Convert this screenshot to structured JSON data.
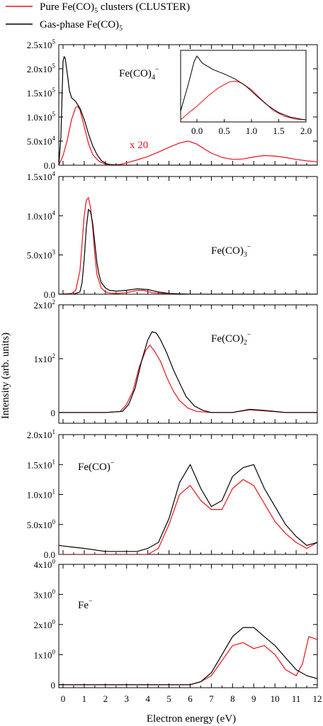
{
  "legend": {
    "red_label": "Pure Fe(CO)",
    "red_sub": "5",
    "red_tail": " clusters (CLUSTER)",
    "black_label": "Gas-phase Fe(CO)",
    "black_sub": "5"
  },
  "colors": {
    "red": "#e8121a",
    "black": "#000000"
  },
  "ylabel": "Intensity (arb. units)",
  "xlabel": "Electron energy  (eV)",
  "chart_data": [
    {
      "type": "line",
      "species": {
        "base": "Fe(CO)",
        "sub": "4",
        "sup": "−"
      },
      "xlim": [
        -0.2,
        12
      ],
      "ylim": [
        0,
        250000
      ],
      "yticks": [
        0,
        50000,
        100000,
        150000,
        200000,
        250000
      ],
      "yticklabels": [
        "0.0",
        "5.0x10^4",
        "1.0x10^5",
        "1.5x10^5",
        "2.0x10^5",
        "2.5x10^5"
      ],
      "annotation": "x 20",
      "series": [
        {
          "color": "red",
          "x": [
            -0.2,
            0.0,
            0.2,
            0.4,
            0.6,
            0.7,
            0.8,
            1.0,
            1.2,
            1.4,
            1.7,
            2.0,
            2.3,
            2.7,
            3.0,
            3.5,
            4.0,
            4.5,
            5.0,
            5.5,
            5.9,
            6.3,
            6.7,
            7.0,
            7.5,
            8.0,
            8.5,
            9.0,
            9.5,
            10.0,
            10.5,
            11.0,
            11.5,
            12.0
          ],
          "y": [
            0,
            20000,
            52000,
            95000,
            120000,
            122000,
            115000,
            80000,
            45000,
            22000,
            8000,
            2000,
            500,
            1500,
            5000,
            11000,
            18000,
            27000,
            37000,
            46000,
            50000,
            44000,
            33000,
            25000,
            16000,
            12000,
            13000,
            17000,
            20000,
            19000,
            16000,
            12000,
            9000,
            7000
          ]
        },
        {
          "color": "black",
          "x": [
            -0.2,
            -0.1,
            0.0,
            0.05,
            0.1,
            0.2,
            0.3,
            0.4,
            0.6,
            0.8,
            1.0,
            1.2,
            1.4,
            1.6,
            1.8,
            2.0,
            2.2,
            2.5,
            3.0,
            4.0,
            12.0
          ],
          "y": [
            0,
            60000,
            215000,
            225000,
            222000,
            190000,
            155000,
            140000,
            132000,
            118000,
            95000,
            65000,
            40000,
            22000,
            10000,
            4000,
            1500,
            500,
            0,
            0,
            0
          ]
        }
      ],
      "inset": {
        "xlim": [
          -0.3,
          2.0
        ],
        "xticklabels": [
          "0.0",
          "0.5",
          "1.0",
          "1.5",
          "2.0"
        ],
        "series": [
          {
            "color": "red",
            "x": [
              -0.3,
              -0.1,
              0.0,
              0.2,
              0.4,
              0.6,
              0.7,
              0.8,
              1.0,
              1.2,
              1.4,
              1.6,
              1.8,
              2.0
            ],
            "y": [
              0.03,
              0.16,
              0.22,
              0.36,
              0.48,
              0.56,
              0.57,
              0.55,
              0.45,
              0.3,
              0.16,
              0.08,
              0.04,
              0.03
            ]
          },
          {
            "color": "black",
            "x": [
              -0.3,
              -0.15,
              -0.05,
              0.0,
              0.1,
              0.3,
              0.5,
              0.7,
              0.9,
              1.1,
              1.3,
              1.5,
              1.7,
              1.9,
              2.0
            ],
            "y": [
              0.15,
              0.55,
              0.85,
              0.92,
              0.82,
              0.73,
              0.67,
              0.6,
              0.5,
              0.36,
              0.23,
              0.13,
              0.07,
              0.04,
              0.03
            ]
          }
        ]
      }
    },
    {
      "type": "line",
      "species": {
        "base": "Fe(CO)",
        "sub": "3",
        "sup": "−"
      },
      "xlim": [
        -0.2,
        12
      ],
      "ylim": [
        0,
        15000
      ],
      "yticks": [
        0,
        5000,
        10000,
        15000
      ],
      "yticklabels": [
        "0.0",
        "5.0x10^3",
        "1.0x10^4",
        "1.5x10^4"
      ],
      "series": [
        {
          "color": "red",
          "x": [
            -0.2,
            0.4,
            0.6,
            0.8,
            0.9,
            1.0,
            1.1,
            1.2,
            1.3,
            1.4,
            1.5,
            1.6,
            1.8,
            2.0,
            2.2,
            2.5,
            3.0,
            3.5,
            3.8,
            4.2,
            5.0,
            6.0,
            12.0
          ],
          "y": [
            0,
            100,
            500,
            3000,
            6500,
            10000,
            12000,
            12300,
            11000,
            8500,
            5000,
            2500,
            800,
            300,
            150,
            100,
            200,
            500,
            500,
            200,
            50,
            0,
            0
          ]
        },
        {
          "color": "black",
          "x": [
            -0.2,
            0.5,
            0.8,
            0.9,
            1.0,
            1.1,
            1.2,
            1.3,
            1.4,
            1.5,
            1.6,
            1.7,
            1.8,
            2.0,
            2.2,
            2.5,
            3.0,
            3.5,
            4.0,
            4.5,
            5.0,
            6.0,
            12.0
          ],
          "y": [
            0,
            0,
            300,
            1500,
            4500,
            8500,
            10800,
            10500,
            9000,
            6500,
            4000,
            2500,
            1500,
            800,
            500,
            400,
            500,
            700,
            600,
            300,
            100,
            0,
            0
          ]
        }
      ]
    },
    {
      "type": "line",
      "species": {
        "base": "Fe(CO)",
        "sub": "2",
        "sup": "−"
      },
      "xlim": [
        -0.2,
        12
      ],
      "ylim": [
        -20,
        200
      ],
      "yticks": [
        0,
        100,
        200
      ],
      "yticklabels": [
        "0",
        "1x10^2",
        "2x10^2"
      ],
      "series": [
        {
          "color": "red",
          "x": [
            -0.2,
            2.0,
            2.7,
            3.0,
            3.3,
            3.6,
            3.9,
            4.1,
            4.3,
            4.6,
            4.9,
            5.2,
            5.5,
            5.9,
            6.3,
            7.0,
            8.0,
            8.8,
            9.5,
            10.5,
            12.0
          ],
          "y": [
            0,
            0,
            2,
            15,
            40,
            85,
            115,
            125,
            115,
            95,
            65,
            40,
            22,
            8,
            2,
            0,
            0,
            5,
            3,
            0,
            0
          ]
        },
        {
          "color": "black",
          "x": [
            -0.2,
            2.0,
            2.8,
            3.1,
            3.4,
            3.7,
            4.0,
            4.2,
            4.4,
            4.6,
            4.9,
            5.2,
            5.5,
            5.8,
            6.2,
            6.6,
            7.0,
            8.0,
            8.8,
            9.5,
            10.5,
            12.0
          ],
          "y": [
            0,
            0,
            2,
            15,
            45,
            95,
            135,
            150,
            148,
            135,
            110,
            80,
            55,
            30,
            12,
            4,
            0,
            0,
            6,
            4,
            0,
            0
          ]
        }
      ]
    },
    {
      "type": "line",
      "species": {
        "base": "Fe(CO)",
        "sub": "",
        "sup": "−"
      },
      "xlim": [
        -0.2,
        12
      ],
      "ylim": [
        0,
        20
      ],
      "yticks": [
        0,
        5,
        10,
        15,
        20
      ],
      "yticklabels": [
        "0.0",
        "5.0x10^0",
        "1.0x10^1",
        "1.5x10^1",
        "2.0x10^1"
      ],
      "series": [
        {
          "color": "red",
          "x": [
            -0.2,
            3.5,
            4.0,
            4.5,
            5.0,
            5.5,
            6.0,
            6.5,
            7.0,
            7.5,
            8.0,
            8.5,
            9.0,
            9.5,
            10.0,
            10.5,
            11.0,
            11.5,
            12.0
          ],
          "y": [
            0,
            0,
            0,
            1,
            5,
            10,
            11.5,
            9,
            7.5,
            7.5,
            11,
            12.5,
            11.5,
            8.5,
            5.5,
            3.5,
            2,
            1,
            2
          ]
        },
        {
          "color": "black",
          "x": [
            -0.2,
            0.5,
            1.0,
            2.0,
            3.0,
            3.5,
            4.0,
            4.5,
            5.0,
            5.5,
            6.0,
            6.5,
            7.0,
            7.5,
            8.0,
            8.5,
            9.0,
            9.5,
            10.0,
            10.5,
            11.0,
            11.5,
            12.0
          ],
          "y": [
            1.5,
            1.2,
            1.0,
            0.5,
            0.5,
            0.5,
            1,
            2,
            6,
            12,
            15,
            11,
            8,
            9,
            13,
            14.5,
            15,
            11,
            8,
            5,
            3,
            1.5,
            2
          ]
        }
      ]
    },
    {
      "type": "line",
      "species": {
        "base": "Fe",
        "sub": "",
        "sup": "−"
      },
      "xlim": [
        -0.2,
        12
      ],
      "ylim": [
        -0.1,
        4
      ],
      "yticks": [
        0,
        1,
        2,
        3,
        4
      ],
      "yticklabels": [
        "0",
        "1x10^0",
        "2x10^0",
        "3x10^0",
        "4x10^0"
      ],
      "series": [
        {
          "color": "red",
          "x": [
            -0.2,
            5.0,
            6.0,
            6.5,
            7.0,
            7.5,
            8.0,
            8.5,
            9.0,
            9.5,
            10.0,
            10.5,
            11.0,
            11.3,
            11.6,
            12.0
          ],
          "y": [
            0,
            0,
            0,
            0.1,
            0.3,
            0.8,
            1.3,
            1.4,
            1.2,
            1.3,
            1.0,
            0.5,
            0.3,
            0.7,
            1.6,
            1.5
          ]
        },
        {
          "color": "black",
          "x": [
            -0.2,
            5.0,
            6.0,
            6.5,
            7.0,
            7.5,
            8.0,
            8.5,
            9.0,
            9.5,
            10.0,
            10.5,
            11.0,
            11.5,
            12.0
          ],
          "y": [
            0,
            0,
            0,
            0.1,
            0.4,
            1.0,
            1.6,
            1.9,
            1.9,
            1.6,
            1.3,
            0.9,
            0.5,
            0.3,
            0.2
          ]
        }
      ]
    }
  ],
  "xticklabels": [
    "0",
    "1",
    "2",
    "3",
    "4",
    "5",
    "6",
    "7",
    "8",
    "9",
    "10",
    "11",
    "12"
  ],
  "x20_label": "x 20"
}
